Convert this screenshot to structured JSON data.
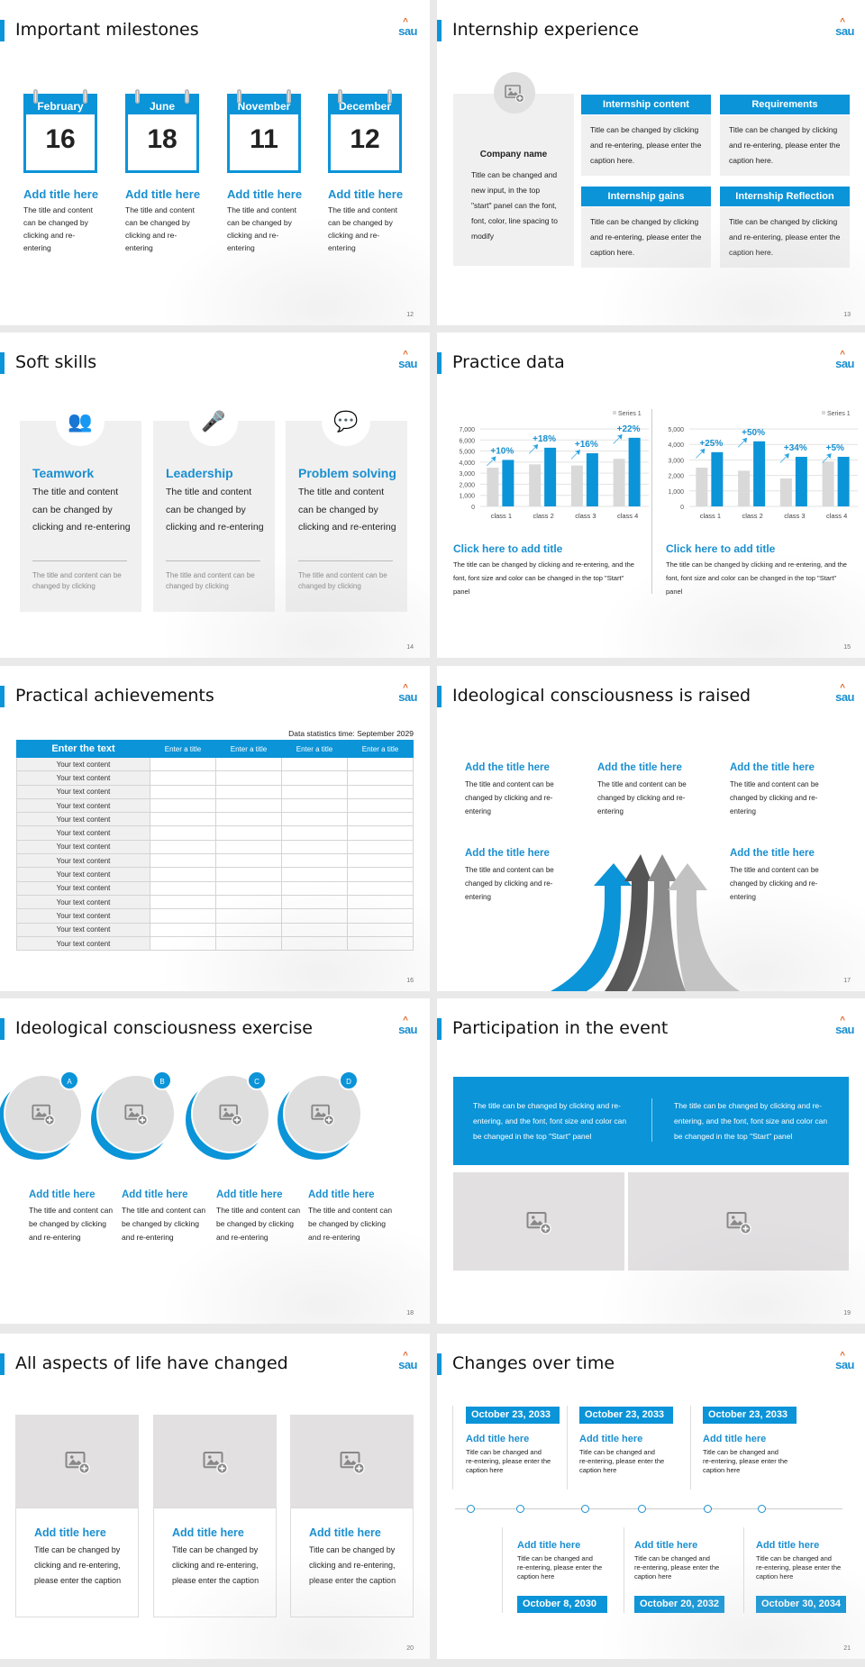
{
  "brand": {
    "logo": "sau",
    "accent": "#0b94d8"
  },
  "s12": {
    "title": "Important milestones",
    "page": "12",
    "items": [
      {
        "month": "February",
        "day": "16",
        "heading": "Add title here",
        "text": "The title and content can be changed by clicking and re-entering"
      },
      {
        "month": "June",
        "day": "18",
        "heading": "Add title here",
        "text": "The title and content can be changed by clicking and re-entering"
      },
      {
        "month": "November",
        "day": "11",
        "heading": "Add title here",
        "text": "The title and content can be changed by clicking and re-entering"
      },
      {
        "month": "December",
        "day": "12",
        "heading": "Add title here",
        "text": "The title and content can be changed by clicking and re-entering"
      }
    ]
  },
  "s13": {
    "title": "Internship experience",
    "page": "13",
    "company": "Company name",
    "company_text": "Title can be changed and new input, in the top \"start\" panel can the font, font, color, line spacing to modify",
    "boxes": [
      {
        "heading": "Internship content",
        "text": "Title can be changed by clicking and re-entering, please enter the caption here."
      },
      {
        "heading": "Requirements",
        "text": "Title can be changed by clicking and re-entering, please enter the caption here."
      },
      {
        "heading": "Internship gains",
        "text": "Title can be changed by clicking and re-entering, please enter the caption here."
      },
      {
        "heading": "Internship Reflection",
        "text": "Title can be changed by clicking and re-entering, please enter the caption here."
      }
    ]
  },
  "s14": {
    "title": "Soft skills",
    "page": "14",
    "cards": [
      {
        "icon": "teamwork-icon",
        "heading": "Teamwork",
        "text": "The title and content can be changed by clicking and re-entering",
        "note": "The title and content can be changed by clicking"
      },
      {
        "icon": "leadership-icon",
        "heading": "Leadership",
        "text": "The title and content can be changed by clicking and re-entering",
        "note": "The title and content can be changed by clicking"
      },
      {
        "icon": "problem-solving-icon",
        "heading": "Problem solving",
        "text": "The title and content can be changed by clicking and re-entering",
        "note": "The title and content can be changed by clicking"
      }
    ]
  },
  "s15": {
    "title": "Practice data",
    "page": "15",
    "panels": [
      {
        "heading": "Click here to add title",
        "text": "The title can be changed by clicking and re-entering, and the font, font size and color can be changed in the top \"Start\" panel"
      },
      {
        "heading": "Click here to add title",
        "text": "The title can be changed by clicking and re-entering, and the font, font size and color can be changed in the top \"Start\" panel"
      }
    ]
  },
  "chart_data": [
    {
      "type": "bar",
      "legend": "Series 1",
      "legend_position": "top-right",
      "categories": [
        "class 1",
        "class 2",
        "class 3",
        "class 4"
      ],
      "ylim": [
        0,
        7000
      ],
      "yticks": [
        "0",
        "1,000",
        "2,000",
        "3,000",
        "4,000",
        "5,000",
        "6,000",
        "7,000"
      ],
      "grid": true,
      "series": [
        {
          "values": [
            3500,
            3800,
            3700,
            4300
          ],
          "color": "#d9d9d9"
        },
        {
          "name": "Series 1",
          "values": [
            4200,
            5300,
            4800,
            6200
          ],
          "color": "#0b94d8"
        }
      ],
      "annotations": [
        "+10%",
        "+18%",
        "+16%",
        "+22%"
      ]
    },
    {
      "type": "bar",
      "legend": "Series 1",
      "legend_position": "top-right",
      "categories": [
        "class 1",
        "class 2",
        "class 3",
        "class 4"
      ],
      "ylim": [
        0,
        5000
      ],
      "yticks": [
        "0",
        "1,000",
        "2,000",
        "3,000",
        "4,000",
        "5,000"
      ],
      "grid": true,
      "series": [
        {
          "values": [
            2500,
            2300,
            1800,
            2900
          ],
          "color": "#d9d9d9"
        },
        {
          "name": "Series 1",
          "values": [
            3500,
            4200,
            3200,
            3200
          ],
          "color": "#0b94d8"
        }
      ],
      "annotations": [
        "+25%",
        "+50%",
        "+34%",
        "+5%"
      ]
    }
  ],
  "s16": {
    "title": "Practical achievements",
    "page": "16",
    "stat_time": "Data statistics time: September 2029",
    "headers": [
      "Enter the text",
      "Enter a title",
      "Enter a title",
      "Enter a title",
      "Enter a title"
    ],
    "rows": [
      "Your text content",
      "Your text content",
      "Your text content",
      "Your text content",
      "Your text content",
      "Your text content",
      "Your text content",
      "Your text content",
      "Your text content",
      "Your text content",
      "Your text content",
      "Your text content",
      "Your text content",
      "Your text content"
    ]
  },
  "s17": {
    "title": "Ideological consciousness is raised",
    "page": "17",
    "items": [
      {
        "heading": "Add the title here",
        "text": "The title and content can be changed by clicking and re-entering"
      },
      {
        "heading": "Add the title here",
        "text": "The title and content can be changed by clicking and re-entering"
      },
      {
        "heading": "Add the title here",
        "text": "The title and content can be changed by clicking and re-entering"
      },
      {
        "heading": "Add the title here",
        "text": "The title and content can be changed by clicking and re-entering"
      },
      {
        "heading": "Add the title here",
        "text": "The title and content can be changed by clicking and re-entering"
      }
    ]
  },
  "s18": {
    "title": "Ideological consciousness exercise",
    "page": "18",
    "items": [
      {
        "badge": "A",
        "heading": "Add title here",
        "text": "The title and content can be changed by clicking and re-entering"
      },
      {
        "badge": "B",
        "heading": "Add title here",
        "text": "The title and content can be changed by clicking and re-entering"
      },
      {
        "badge": "C",
        "heading": "Add title here",
        "text": "The title and content can be changed by clicking and re-entering"
      },
      {
        "badge": "D",
        "heading": "Add title here",
        "text": "The title and content can be changed by clicking and re-entering"
      }
    ]
  },
  "s19": {
    "title": "Participation in the event",
    "page": "19",
    "texts": [
      "The title can be changed by clicking and re-entering, and the font, font size and color can be changed in the top \"Start\" panel",
      "The title can be changed by clicking and re-entering, and the font, font size and color can be changed in the top \"Start\" panel"
    ]
  },
  "s20": {
    "title": "All aspects of life have changed",
    "page": "20",
    "cards": [
      {
        "heading": "Add title here",
        "text": "Title can be changed by clicking and re-entering, please enter the caption"
      },
      {
        "heading": "Add title here",
        "text": "Title can be changed by clicking and re-entering, please enter the caption"
      },
      {
        "heading": "Add title here",
        "text": "Title can be changed by clicking and re-entering, please enter the caption"
      }
    ]
  },
  "s21": {
    "title": "Changes over time",
    "page": "21",
    "top": [
      {
        "date": "October 23, 2033",
        "heading": "Add title here",
        "text": "Title can be changed and re-entering, please enter the caption here"
      },
      {
        "date": "October 23, 2033",
        "heading": "Add title here",
        "text": "Title can be changed and re-entering, please enter the caption here"
      },
      {
        "date": "October 23, 2033",
        "heading": "Add title here",
        "text": "Title can be changed and re-entering, please enter the caption here"
      }
    ],
    "bottom": [
      {
        "date": "October 8, 2030",
        "heading": "Add title here",
        "text": "Title can be changed and re-entering, please enter the caption here"
      },
      {
        "date": "October 20, 2032",
        "heading": "Add title here",
        "text": "Title can be changed and re-entering, please enter the caption here"
      },
      {
        "date": "October 30, 2034",
        "heading": "Add title here",
        "text": "Title can be changed and re-entering, please enter the caption here"
      }
    ]
  }
}
